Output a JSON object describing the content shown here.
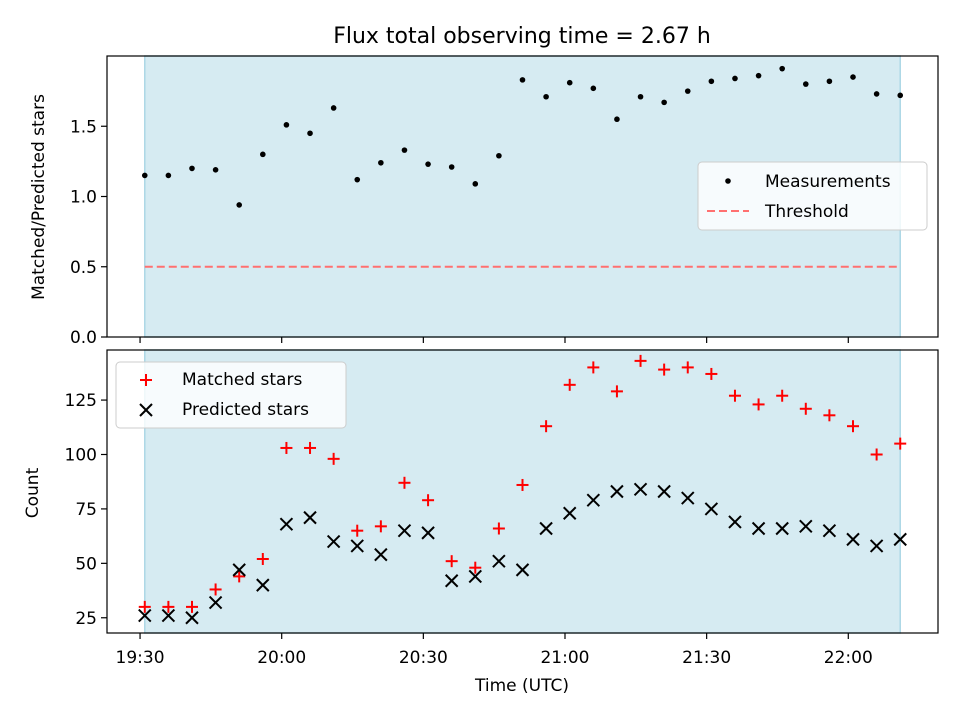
{
  "figure": {
    "title": "Flux total observing time = 2.67 h",
    "xlabel": "Time (UTC)"
  },
  "colors": {
    "shade": "#add8e6",
    "measurement": "#000000",
    "threshold": "#ff7070",
    "matched": "#ff0000",
    "predicted": "#000000"
  },
  "chart_data": [
    {
      "type": "scatter",
      "ylabel": "Matched/Predicted stars",
      "ylim": [
        0,
        2.0
      ],
      "yticks": [
        0.0,
        0.5,
        1.0,
        1.5
      ],
      "ytick_labels": [
        "0.0",
        "0.5",
        "1.0",
        "1.5"
      ],
      "xticks": [
        "19:30",
        "20:00",
        "20:30",
        "21:00",
        "21:30",
        "22:00"
      ],
      "xlim": [
        "19:23",
        "22:19"
      ],
      "shaded_span": [
        "19:31",
        "22:11"
      ],
      "legend_position": "center-right",
      "series": [
        {
          "name": "Measurements",
          "marker": "dot",
          "x": [
            "19:31",
            "19:36",
            "19:41",
            "19:46",
            "19:51",
            "19:56",
            "20:01",
            "20:06",
            "20:11",
            "20:16",
            "20:21",
            "20:26",
            "20:31",
            "20:36",
            "20:41",
            "20:46",
            "20:51",
            "20:56",
            "21:01",
            "21:06",
            "21:11",
            "21:16",
            "21:21",
            "21:26",
            "21:31",
            "21:36",
            "21:41",
            "21:46",
            "21:51",
            "21:56",
            "22:01",
            "22:06",
            "22:11"
          ],
          "y": [
            1.15,
            1.15,
            1.2,
            1.19,
            0.94,
            1.3,
            1.51,
            1.45,
            1.63,
            1.12,
            1.24,
            1.33,
            1.23,
            1.21,
            1.09,
            1.29,
            1.83,
            1.71,
            1.81,
            1.77,
            1.55,
            1.71,
            1.67,
            1.75,
            1.82,
            1.84,
            1.86,
            1.91,
            1.8,
            1.82,
            1.85,
            1.73,
            1.72
          ]
        },
        {
          "name": "Threshold",
          "line_style": "dashed",
          "x": [
            "19:31",
            "22:11"
          ],
          "y": [
            0.5,
            0.5
          ]
        }
      ]
    },
    {
      "type": "scatter",
      "ylabel": "Count",
      "ylim": [
        18,
        148
      ],
      "yticks": [
        25,
        50,
        75,
        100,
        125
      ],
      "ytick_labels": [
        "25",
        "50",
        "75",
        "100",
        "125"
      ],
      "xticks": [
        "19:30",
        "20:00",
        "20:30",
        "21:00",
        "21:30",
        "22:00"
      ],
      "xlim": [
        "19:23",
        "22:19"
      ],
      "shaded_span": [
        "19:31",
        "22:11"
      ],
      "legend_position": "upper-left",
      "series": [
        {
          "name": "Matched stars",
          "marker": "plus",
          "x": [
            "19:31",
            "19:36",
            "19:41",
            "19:46",
            "19:51",
            "19:56",
            "20:01",
            "20:06",
            "20:11",
            "20:16",
            "20:21",
            "20:26",
            "20:31",
            "20:36",
            "20:41",
            "20:46",
            "20:51",
            "20:56",
            "21:01",
            "21:06",
            "21:11",
            "21:16",
            "21:21",
            "21:26",
            "21:31",
            "21:36",
            "21:41",
            "21:46",
            "21:51",
            "21:56",
            "22:01",
            "22:06",
            "22:11"
          ],
          "y": [
            30,
            30,
            30,
            38,
            44,
            52,
            103,
            103,
            98,
            65,
            67,
            87,
            79,
            51,
            48,
            66,
            86,
            113,
            132,
            140,
            129,
            143,
            139,
            140,
            137,
            127,
            123,
            127,
            121,
            118,
            113,
            100,
            105
          ]
        },
        {
          "name": "Predicted stars",
          "marker": "x",
          "x": [
            "19:31",
            "19:36",
            "19:41",
            "19:46",
            "19:51",
            "19:56",
            "20:01",
            "20:06",
            "20:11",
            "20:16",
            "20:21",
            "20:26",
            "20:31",
            "20:36",
            "20:41",
            "20:46",
            "20:51",
            "20:56",
            "21:01",
            "21:06",
            "21:11",
            "21:16",
            "21:21",
            "21:26",
            "21:31",
            "21:36",
            "21:41",
            "21:46",
            "21:51",
            "21:56",
            "22:01",
            "22:06",
            "22:11"
          ],
          "y": [
            26,
            26,
            25,
            32,
            47,
            40,
            68,
            71,
            60,
            58,
            54,
            65,
            64,
            42,
            44,
            51,
            47,
            66,
            73,
            79,
            83,
            84,
            83,
            80,
            75,
            69,
            66,
            66,
            67,
            65,
            61,
            58,
            61
          ]
        }
      ]
    }
  ]
}
